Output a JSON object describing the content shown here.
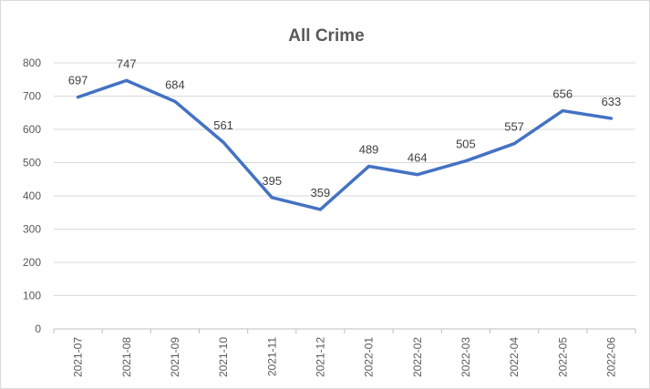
{
  "chart_data": {
    "type": "line",
    "title": "All Crime",
    "xlabel": "",
    "ylabel": "",
    "categories": [
      "2021-07",
      "2021-08",
      "2021-09",
      "2021-10",
      "2021-11",
      "2021-12",
      "2022-01",
      "2022-02",
      "2022-03",
      "2022-04",
      "2022-05",
      "2022-06"
    ],
    "series": [
      {
        "values": [
          697,
          747,
          684,
          561,
          395,
          359,
          489,
          464,
          505,
          557,
          656,
          633
        ],
        "color": "#4472c4"
      }
    ],
    "ylim": [
      0,
      800
    ],
    "yticks": [
      0,
      100,
      200,
      300,
      400,
      500,
      600,
      700,
      800
    ],
    "grid": "horizontal",
    "legend": "none",
    "data_labels": true
  }
}
